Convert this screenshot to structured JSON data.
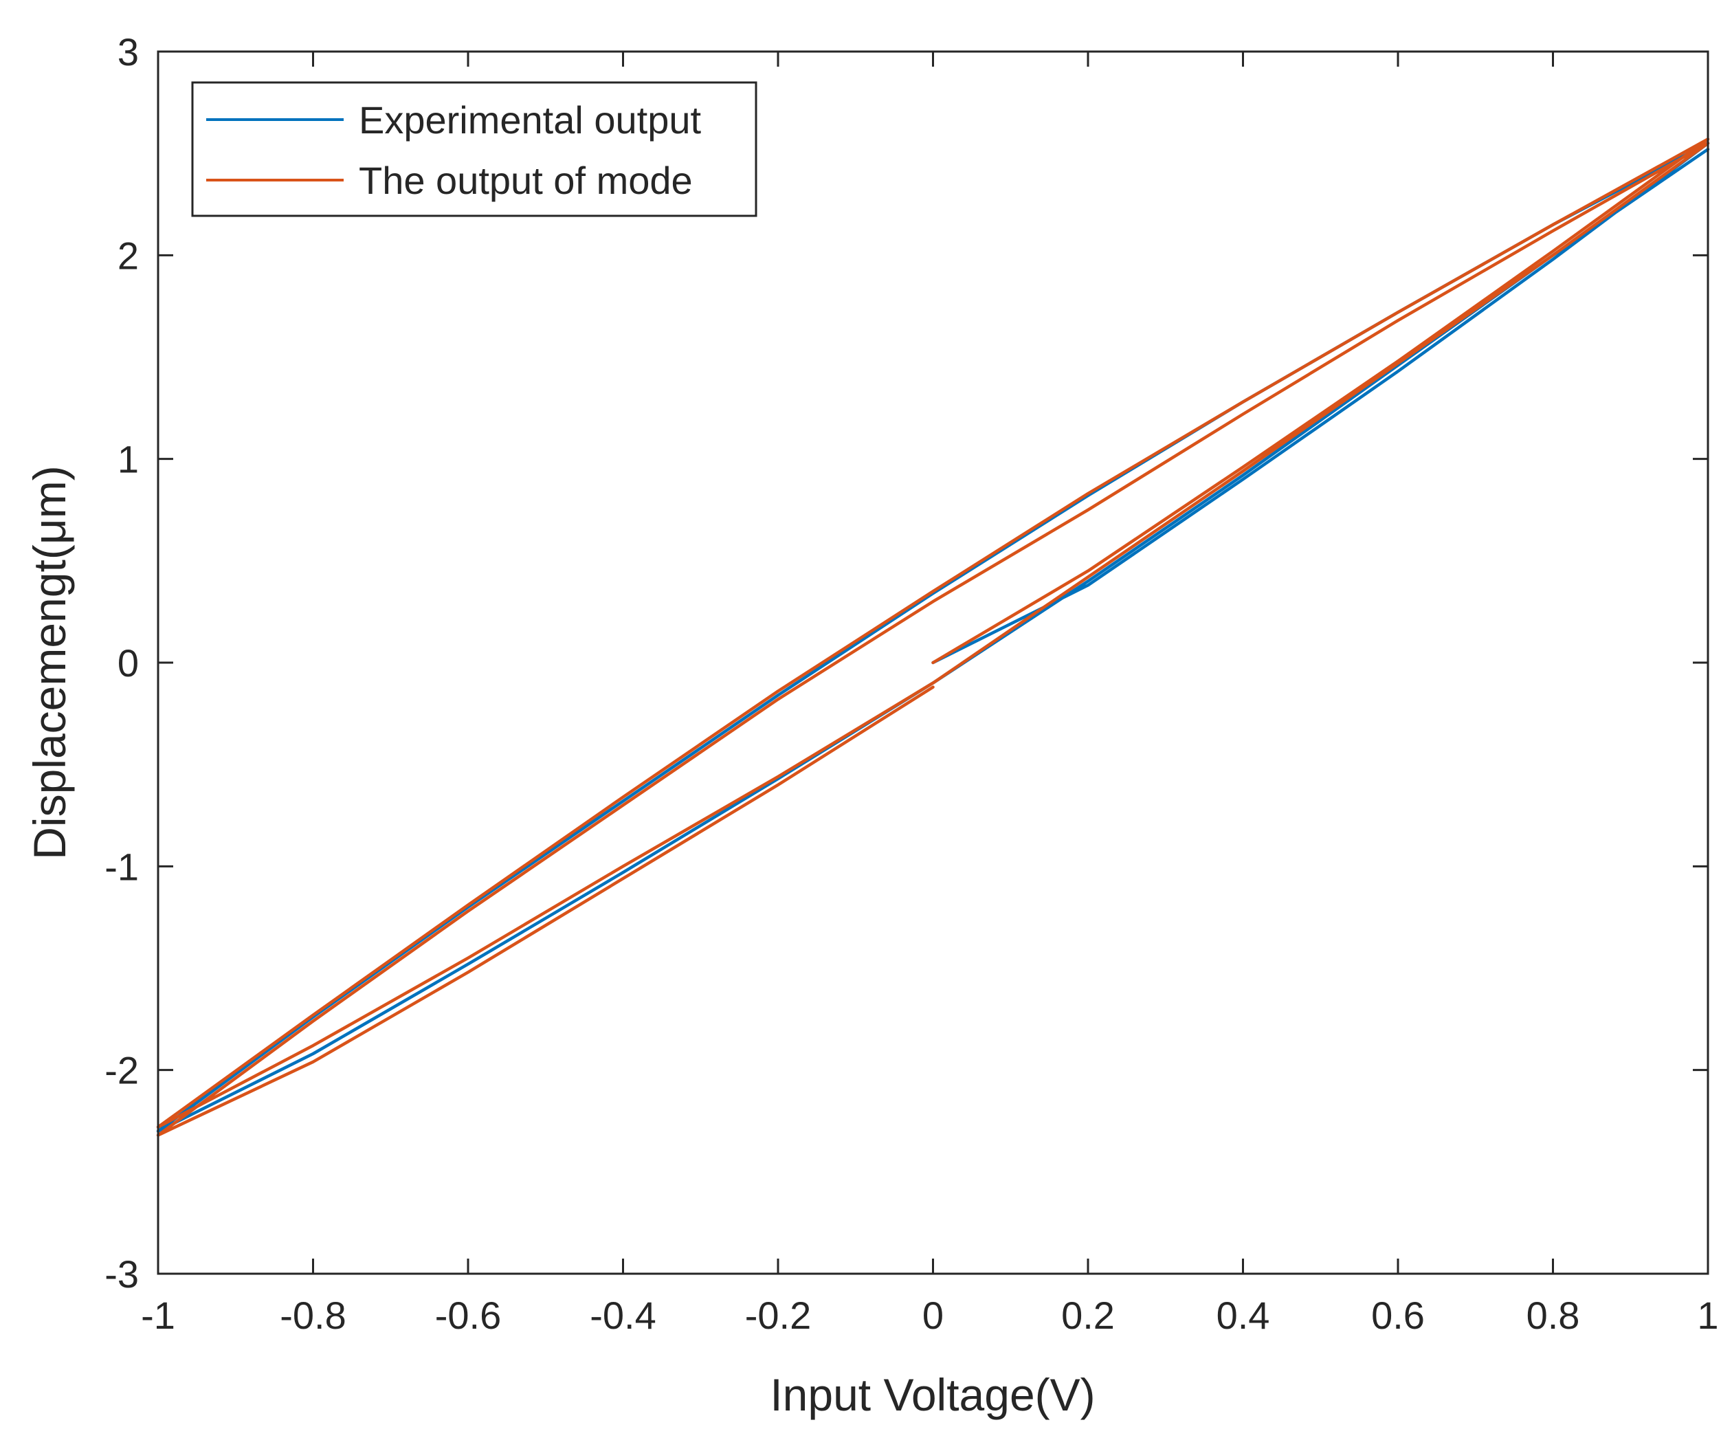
{
  "chart_data": {
    "type": "line",
    "title": "",
    "xlabel": "Input Voltage(V)",
    "ylabel": "Displacemengt(μm)",
    "xlim": [
      -1,
      1
    ],
    "ylim": [
      -3,
      3
    ],
    "xticks": [
      -1,
      -0.8,
      -0.6,
      -0.4,
      -0.2,
      0,
      0.2,
      0.4,
      0.6,
      0.8,
      1
    ],
    "xtick_labels": [
      "-1",
      "-0.8",
      "-0.6",
      "-0.4",
      "-0.2",
      "0",
      "0.2",
      "0.4",
      "0.6",
      "0.8",
      "1"
    ],
    "yticks": [
      -3,
      -2,
      -1,
      0,
      1,
      2,
      3
    ],
    "ytick_labels": [
      "-3",
      "-2",
      "-1",
      "0",
      "1",
      "2",
      "3"
    ],
    "grid": false,
    "legend_position": "top-left",
    "series": [
      {
        "name": "Experimental output",
        "color": "#0072BD",
        "x": [
          0,
          0.2,
          0.4,
          0.6,
          0.8,
          1,
          0.8,
          0.6,
          0.4,
          0.2,
          0,
          -0.2,
          -0.4,
          -0.6,
          -0.8,
          -1,
          -0.8,
          -0.6,
          -0.4,
          -0.2,
          0,
          0.2,
          0.4,
          0.6,
          0.8,
          1
        ],
        "y": [
          0,
          0.38,
          0.9,
          1.43,
          1.98,
          2.55,
          2.15,
          1.72,
          1.28,
          0.82,
          0.34,
          -0.16,
          -0.68,
          -1.2,
          -1.74,
          -2.3,
          -1.92,
          -1.48,
          -1.03,
          -0.57,
          -0.1,
          0.4,
          0.92,
          1.46,
          2.0,
          2.52
        ]
      },
      {
        "name": "The output of mode",
        "color": "#D95319",
        "x": [
          0,
          0.2,
          0.4,
          0.6,
          0.8,
          1,
          0.8,
          0.6,
          0.4,
          0.2,
          0,
          -0.2,
          -0.4,
          -0.6,
          -0.8,
          -1,
          -0.8,
          -0.6,
          -0.4,
          -0.2,
          0,
          0.2,
          0.4,
          0.6,
          0.8,
          1,
          0.8,
          0.6,
          0.4,
          0.2,
          0,
          -0.2,
          -0.4,
          -0.6,
          -0.8,
          -1,
          -0.8,
          -0.6,
          -0.4,
          -0.2,
          0
        ],
        "y": [
          0,
          0.45,
          0.96,
          1.48,
          2.02,
          2.57,
          2.15,
          1.72,
          1.28,
          0.83,
          0.35,
          -0.14,
          -0.66,
          -1.19,
          -1.73,
          -2.28,
          -1.88,
          -1.45,
          -1.0,
          -0.56,
          -0.1,
          0.42,
          0.94,
          1.47,
          2.0,
          2.55,
          2.12,
          1.68,
          1.22,
          0.75,
          0.3,
          -0.18,
          -0.7,
          -1.22,
          -1.76,
          -2.32,
          -1.96,
          -1.52,
          -1.06,
          -0.6,
          -0.12
        ]
      }
    ]
  }
}
